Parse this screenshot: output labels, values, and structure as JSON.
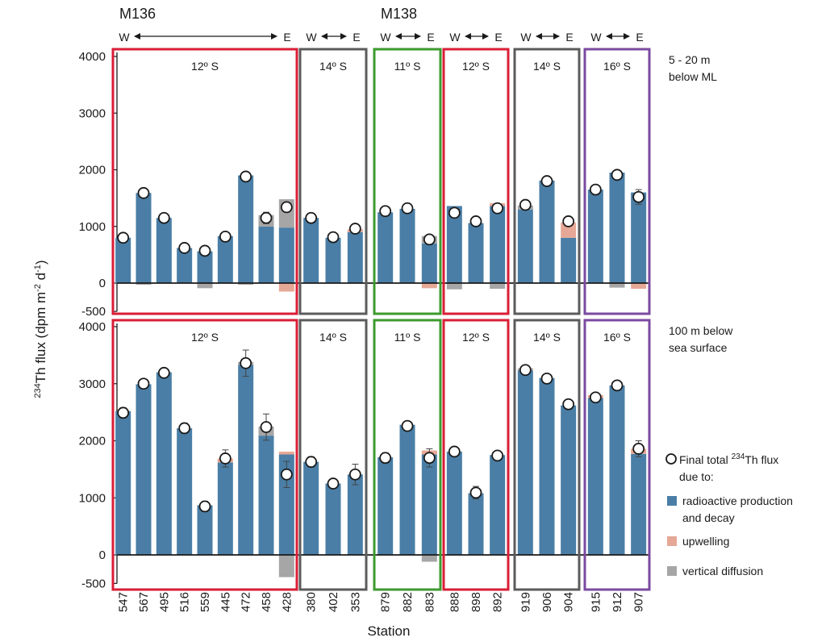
{
  "chart_data": {
    "type": "bar",
    "title": "",
    "xlabel": "Station",
    "ylabel": "234Th flux (dpm m-2 d-1)",
    "ylabel_parts": {
      "sup1": "234",
      "main": "Th flux (dpm m",
      "sup2": "-2",
      "mid": " d",
      "sup3": "-1",
      "end": ")"
    },
    "stations": [
      "547",
      "567",
      "495",
      "516",
      "559",
      "445",
      "472",
      "458",
      "428",
      "380",
      "402",
      "353",
      "879",
      "882",
      "883",
      "888",
      "898",
      "892",
      "919",
      "906",
      "904",
      "915",
      "912",
      "907"
    ],
    "cruises": [
      {
        "name": "M136",
        "groups": [
          0,
          1
        ]
      },
      {
        "name": "M138",
        "groups": [
          2,
          3,
          4,
          5
        ]
      }
    ],
    "groups": [
      {
        "lat": "12º S",
        "color": "#d91e36",
        "stations": [
          "547",
          "567",
          "495",
          "516",
          "559",
          "445",
          "472",
          "458",
          "428"
        ]
      },
      {
        "lat": "14º S",
        "color": "#5b5b5b",
        "stations": [
          "380",
          "402",
          "353"
        ]
      },
      {
        "lat": "11º S",
        "color": "#3c9a2e",
        "stations": [
          "879",
          "882",
          "883"
        ]
      },
      {
        "lat": "12º S",
        "color": "#d91e36",
        "stations": [
          "888",
          "898",
          "892"
        ]
      },
      {
        "lat": "14º S",
        "color": "#5b5b5b",
        "stations": [
          "919",
          "906",
          "904"
        ]
      },
      {
        "lat": "16º S",
        "color": "#7b4aa0",
        "stations": [
          "915",
          "912",
          "907"
        ]
      }
    ],
    "direction": {
      "west": "W",
      "east": "E"
    },
    "ylim": [
      -500,
      4000
    ],
    "yticks": [
      "4000",
      "3000",
      "2000",
      "1000",
      "0",
      "-500"
    ],
    "ytick_values": [
      4000,
      3000,
      2000,
      1000,
      0,
      -500
    ],
    "panels": [
      {
        "label_lines": [
          "5 - 20 m",
          "below ML"
        ],
        "radioactive": [
          800,
          1590,
          1150,
          620,
          560,
          830,
          1900,
          1000,
          980,
          1150,
          800,
          900,
          1250,
          1310,
          700,
          1360,
          1060,
          1360,
          1300,
          1810,
          800,
          1650,
          1950,
          1600
        ],
        "upwelling_pos": [
          0,
          0,
          0,
          0,
          0,
          0,
          0,
          0,
          0,
          0,
          0,
          50,
          0,
          0,
          0,
          0,
          0,
          50,
          0,
          0,
          270,
          0,
          0,
          0
        ],
        "diffusion_pos": [
          0,
          0,
          0,
          0,
          0,
          0,
          0,
          200,
          500,
          0,
          0,
          0,
          0,
          0,
          130,
          0,
          0,
          0,
          70,
          0,
          0,
          0,
          0,
          0
        ],
        "upwelling_neg": [
          0,
          0,
          0,
          0,
          0,
          0,
          0,
          0,
          150,
          0,
          0,
          0,
          0,
          0,
          90,
          0,
          0,
          0,
          0,
          0,
          0,
          0,
          0,
          100
        ],
        "diffusion_neg": [
          0,
          30,
          0,
          0,
          90,
          0,
          30,
          0,
          0,
          0,
          0,
          0,
          0,
          0,
          0,
          110,
          0,
          100,
          0,
          0,
          0,
          0,
          80,
          0
        ],
        "total": [
          800,
          1590,
          1150,
          620,
          570,
          820,
          1880,
          1150,
          1340,
          1150,
          810,
          960,
          1270,
          1320,
          770,
          1240,
          1090,
          1320,
          1380,
          1800,
          1090,
          1650,
          1910,
          1520
        ],
        "error": [
          0,
          0,
          0,
          0,
          80,
          0,
          0,
          100,
          0,
          0,
          0,
          0,
          0,
          0,
          80,
          0,
          0,
          0,
          0,
          0,
          0,
          0,
          0,
          130
        ]
      },
      {
        "label_lines": [
          "100 m below",
          "sea surface"
        ],
        "radioactive": [
          2520,
          2990,
          3200,
          2220,
          870,
          1620,
          3330,
          2090,
          1760,
          1630,
          1250,
          1410,
          1710,
          2280,
          1760,
          1810,
          1080,
          1750,
          3230,
          3100,
          2620,
          2750,
          2970,
          1770
        ],
        "upwelling_pos": [
          0,
          0,
          0,
          0,
          0,
          70,
          0,
          0,
          50,
          0,
          0,
          0,
          0,
          0,
          70,
          0,
          0,
          0,
          0,
          0,
          0,
          50,
          0,
          90
        ],
        "diffusion_pos": [
          0,
          0,
          0,
          0,
          0,
          0,
          50,
          160,
          0,
          0,
          0,
          0,
          0,
          0,
          0,
          0,
          0,
          0,
          40,
          0,
          0,
          0,
          0,
          0
        ],
        "upwelling_neg": [
          0,
          0,
          0,
          0,
          0,
          0,
          0,
          0,
          0,
          0,
          0,
          0,
          0,
          0,
          0,
          0,
          0,
          0,
          0,
          0,
          0,
          0,
          0,
          0
        ],
        "diffusion_neg": [
          0,
          0,
          0,
          0,
          0,
          0,
          0,
          0,
          390,
          0,
          0,
          0,
          0,
          0,
          120,
          0,
          0,
          0,
          0,
          0,
          0,
          0,
          0,
          0
        ],
        "total": [
          2490,
          3000,
          3190,
          2220,
          850,
          1690,
          3360,
          2240,
          1410,
          1630,
          1250,
          1410,
          1700,
          2260,
          1700,
          1810,
          1090,
          1740,
          3240,
          3090,
          2640,
          2760,
          2970,
          1860
        ],
        "error": [
          90,
          0,
          0,
          90,
          90,
          150,
          230,
          230,
          230,
          90,
          60,
          180,
          90,
          0,
          160,
          0,
          110,
          70,
          0,
          0,
          0,
          0,
          0,
          140
        ]
      }
    ],
    "legend": {
      "total_line1_pre": "Final total ",
      "total_line1_sup": "234",
      "total_line1_post": "Th flux",
      "total_line2": "due to:",
      "radioactive_line1": "radioactive production",
      "radioactive_line2": "and decay",
      "upwelling": "upwelling",
      "diffusion": "vertical diffusion"
    },
    "colors": {
      "radioactive": "#4a7ea6",
      "upwelling": "#e6a896",
      "diffusion": "#a6a6a6",
      "marker_fill": "#ffffff",
      "marker_stroke": "#1a1a1a"
    }
  }
}
